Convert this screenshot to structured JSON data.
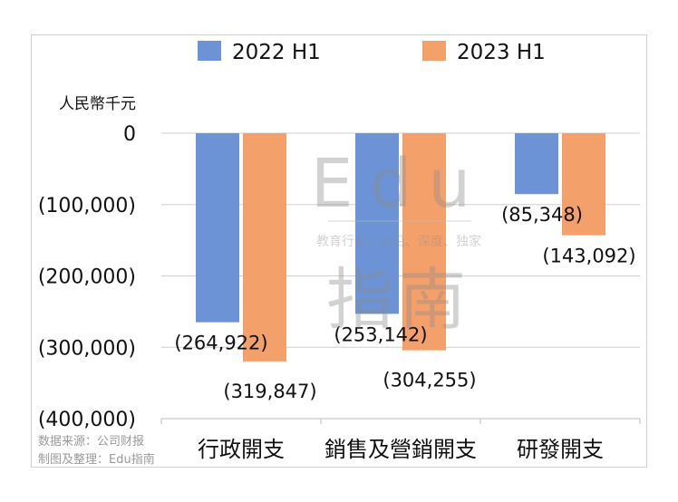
{
  "chart_data": {
    "type": "bar",
    "unit_label": "人民幣千元",
    "categories": [
      "行政開支",
      "銷售及營銷開支",
      "研發開支"
    ],
    "series": [
      {
        "name": "2022 H1",
        "values": [
          -264922,
          -253142,
          -85348
        ],
        "color": "#6b93d6"
      },
      {
        "name": "2023 H1",
        "values": [
          -319847,
          -304255,
          -143092
        ],
        "color": "#f4a06a"
      }
    ],
    "data_labels": [
      [
        "(264,922)",
        "(253,142)",
        "(85,348)"
      ],
      [
        "(319,847)",
        "(304,255)",
        "(143,092)"
      ]
    ],
    "yticks": [
      0,
      -100000,
      -200000,
      -300000,
      -400000
    ],
    "ytick_labels": [
      "0",
      "(100,000)",
      "(200,000)",
      "(300,000)",
      "(400,000)"
    ],
    "ylim": [
      -400000,
      0
    ],
    "grid": true,
    "legend_position": "top-center"
  },
  "watermark": {
    "logo_text": "Edu",
    "logo_text_2": "指南",
    "tagline": "教育行业，前沿、深度、独家"
  },
  "source_note": {
    "line1": "数据来源：公司财报",
    "line2": "制图及整理：Edu指南"
  }
}
